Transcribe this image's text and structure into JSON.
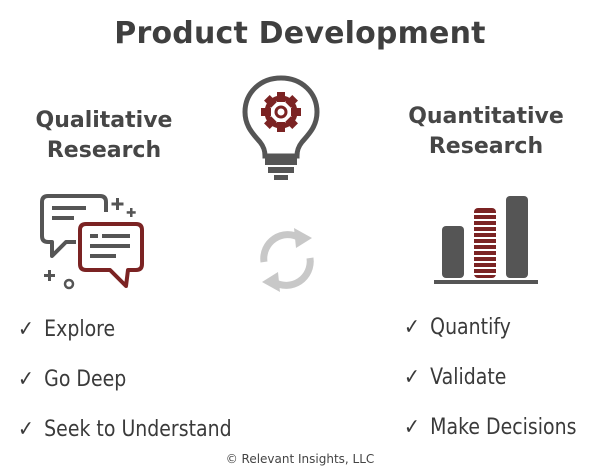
{
  "title": "Product Development",
  "left": {
    "heading_line1": "Qualitative",
    "heading_line2": "Research",
    "items": [
      "Explore",
      "Go Deep",
      "Seek to Understand"
    ]
  },
  "right": {
    "heading_line1": "Quantitative",
    "heading_line2": "Research",
    "items": [
      "Quantify",
      "Validate",
      "Make Decisions"
    ]
  },
  "check_mark": "✓",
  "footer": "© Relevant Insights, LLC",
  "icons": {
    "center_top": "lightbulb-gear-icon",
    "center_mid": "cycle-arrows-icon",
    "left": "chat-bubbles-icon",
    "right": "bar-chart-icon"
  },
  "colors": {
    "accent": "#7b2323",
    "dark": "#555555",
    "light_gray": "#c8c8c8"
  }
}
